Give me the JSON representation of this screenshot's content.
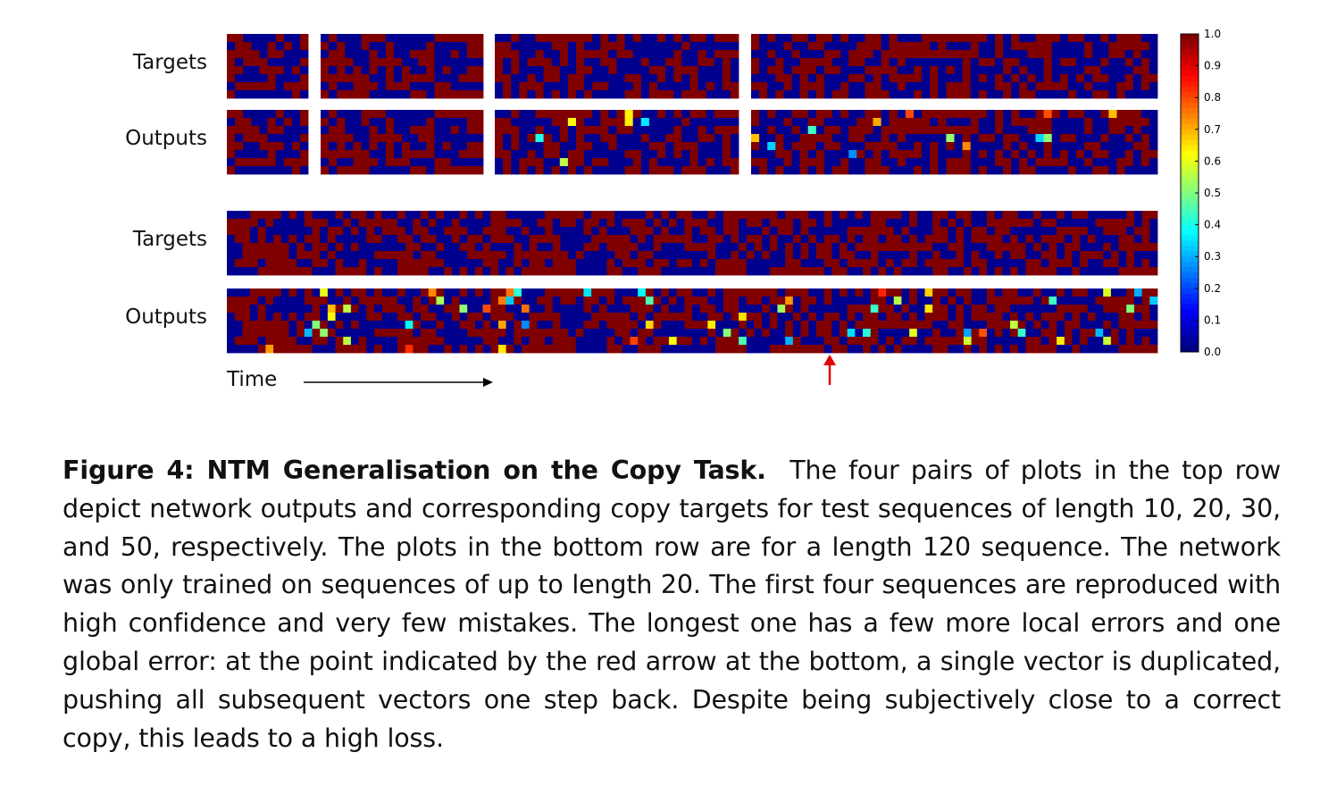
{
  "figure": {
    "row_labels": {
      "top_targets": "Targets",
      "top_outputs": "Outputs",
      "bottom_targets": "Targets",
      "bottom_outputs": "Outputs"
    },
    "time_label": "Time",
    "colorbar_ticks": [
      "1.0",
      "0.9",
      "0.8",
      "0.7",
      "0.6",
      "0.5",
      "0.4",
      "0.3",
      "0.2",
      "0.1",
      "0.0"
    ],
    "caption_bold": "Figure 4: NTM Generalisation on the Copy Task.",
    "caption_text": "The four pairs of plots in the top row depict network outputs and corresponding copy targets for test sequences of length 10, 20, 30, and 50, respectively. The plots in the bottom row are for a length 120 sequence. The network was only trained on sequences of up to length 20. The first four sequences are reproduced with high confidence and very few mistakes. The longest one has a few more local errors and one global error: at the point indicated by the red arrow at the bottom, a single vector is duplicated, pushing all subsequent vectors one step back. Despite being subjectively close to a correct copy, this leads to a high loss."
  },
  "chart_data": {
    "type": "heatmap",
    "colormap": "jet",
    "value_range": [
      0.0,
      1.0
    ],
    "panels": [
      {
        "row": "top",
        "kind": "targets",
        "sequence_length": 10
      },
      {
        "row": "top",
        "kind": "targets",
        "sequence_length": 20
      },
      {
        "row": "top",
        "kind": "targets",
        "sequence_length": 30
      },
      {
        "row": "top",
        "kind": "targets",
        "sequence_length": 50
      },
      {
        "row": "top",
        "kind": "outputs",
        "sequence_length": 10
      },
      {
        "row": "top",
        "kind": "outputs",
        "sequence_length": 20
      },
      {
        "row": "top",
        "kind": "outputs",
        "sequence_length": 30
      },
      {
        "row": "top",
        "kind": "outputs",
        "sequence_length": 50
      },
      {
        "row": "bottom",
        "kind": "targets",
        "sequence_length": 120
      },
      {
        "row": "bottom",
        "kind": "outputs",
        "sequence_length": 120
      }
    ],
    "vector_bits": 8,
    "global_error_marker": "red arrow below bottom outputs"
  }
}
